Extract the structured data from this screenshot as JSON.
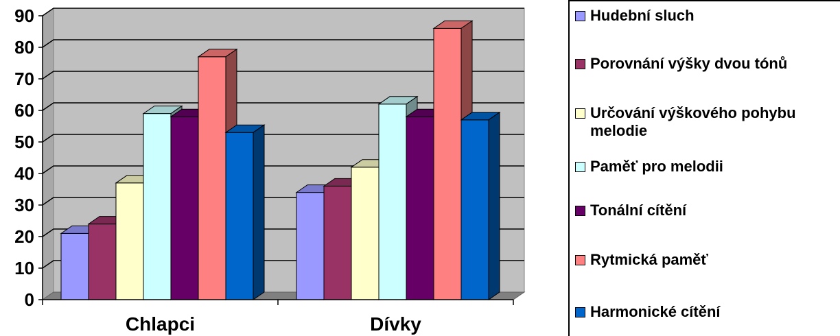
{
  "chart_data": {
    "type": "bar",
    "categories": [
      "Chlapci",
      "Dívky"
    ],
    "ylim": [
      0,
      90
    ],
    "yticks": [
      0,
      10,
      20,
      30,
      40,
      50,
      60,
      70,
      80,
      90
    ],
    "grid": true,
    "legend_position": "right",
    "series": [
      {
        "name": "Hudební sluch",
        "color": "#9999ff",
        "values": [
          21,
          34
        ]
      },
      {
        "name": "Porovnání výšky dvou tónů",
        "color": "#993366",
        "values": [
          24,
          36
        ]
      },
      {
        "name": "Určování výškového pohybu melodie",
        "color": "#ffffcc",
        "values": [
          37,
          42
        ]
      },
      {
        "name": "Paměť pro melodii",
        "color": "#ccffff",
        "values": [
          59,
          62
        ]
      },
      {
        "name": "Tonální cítění",
        "color": "#660066",
        "values": [
          58,
          58
        ]
      },
      {
        "name": "Rytmická paměť",
        "color": "#ff8080",
        "values": [
          77,
          86
        ]
      },
      {
        "name": "Harmonické cítění",
        "color": "#0066cc",
        "values": [
          53,
          57
        ]
      }
    ]
  }
}
